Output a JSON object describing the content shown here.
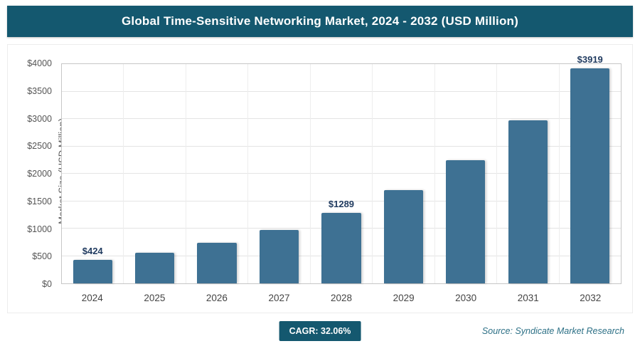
{
  "header": {
    "title": "Global Time-Sensitive Networking Market, 2024 - 2032 (USD Million)"
  },
  "chart_data": {
    "type": "bar",
    "title": "Global Time-Sensitive Networking Market, 2024 - 2032 (USD Million)",
    "xlabel": "",
    "ylabel": "Market Size (USD Million)",
    "ylim": [
      0,
      4000
    ],
    "ytick_step": 500,
    "ytick_labels": [
      "$0",
      "$500",
      "$1000",
      "$1500",
      "$2000",
      "$2500",
      "$3000",
      "$3500",
      "$4000"
    ],
    "categories": [
      "2024",
      "2025",
      "2026",
      "2027",
      "2028",
      "2029",
      "2030",
      "2031",
      "2032"
    ],
    "values": [
      424,
      560,
      740,
      977,
      1289,
      1703,
      2249,
      2970,
      3919
    ],
    "bar_labels": [
      "$424",
      "",
      "",
      "",
      "$1289",
      "",
      "",
      "",
      "$3919"
    ],
    "bar_color": "#3e7193",
    "grid": true,
    "legend_position": "none"
  },
  "footer": {
    "cagr_label": "CAGR: 32.06%",
    "source": "Source: Syndicate Market Research"
  },
  "colors": {
    "header_bg": "#14586f",
    "bar": "#3e7193",
    "badge_bg": "#14586f",
    "source_text": "#2d7086"
  }
}
